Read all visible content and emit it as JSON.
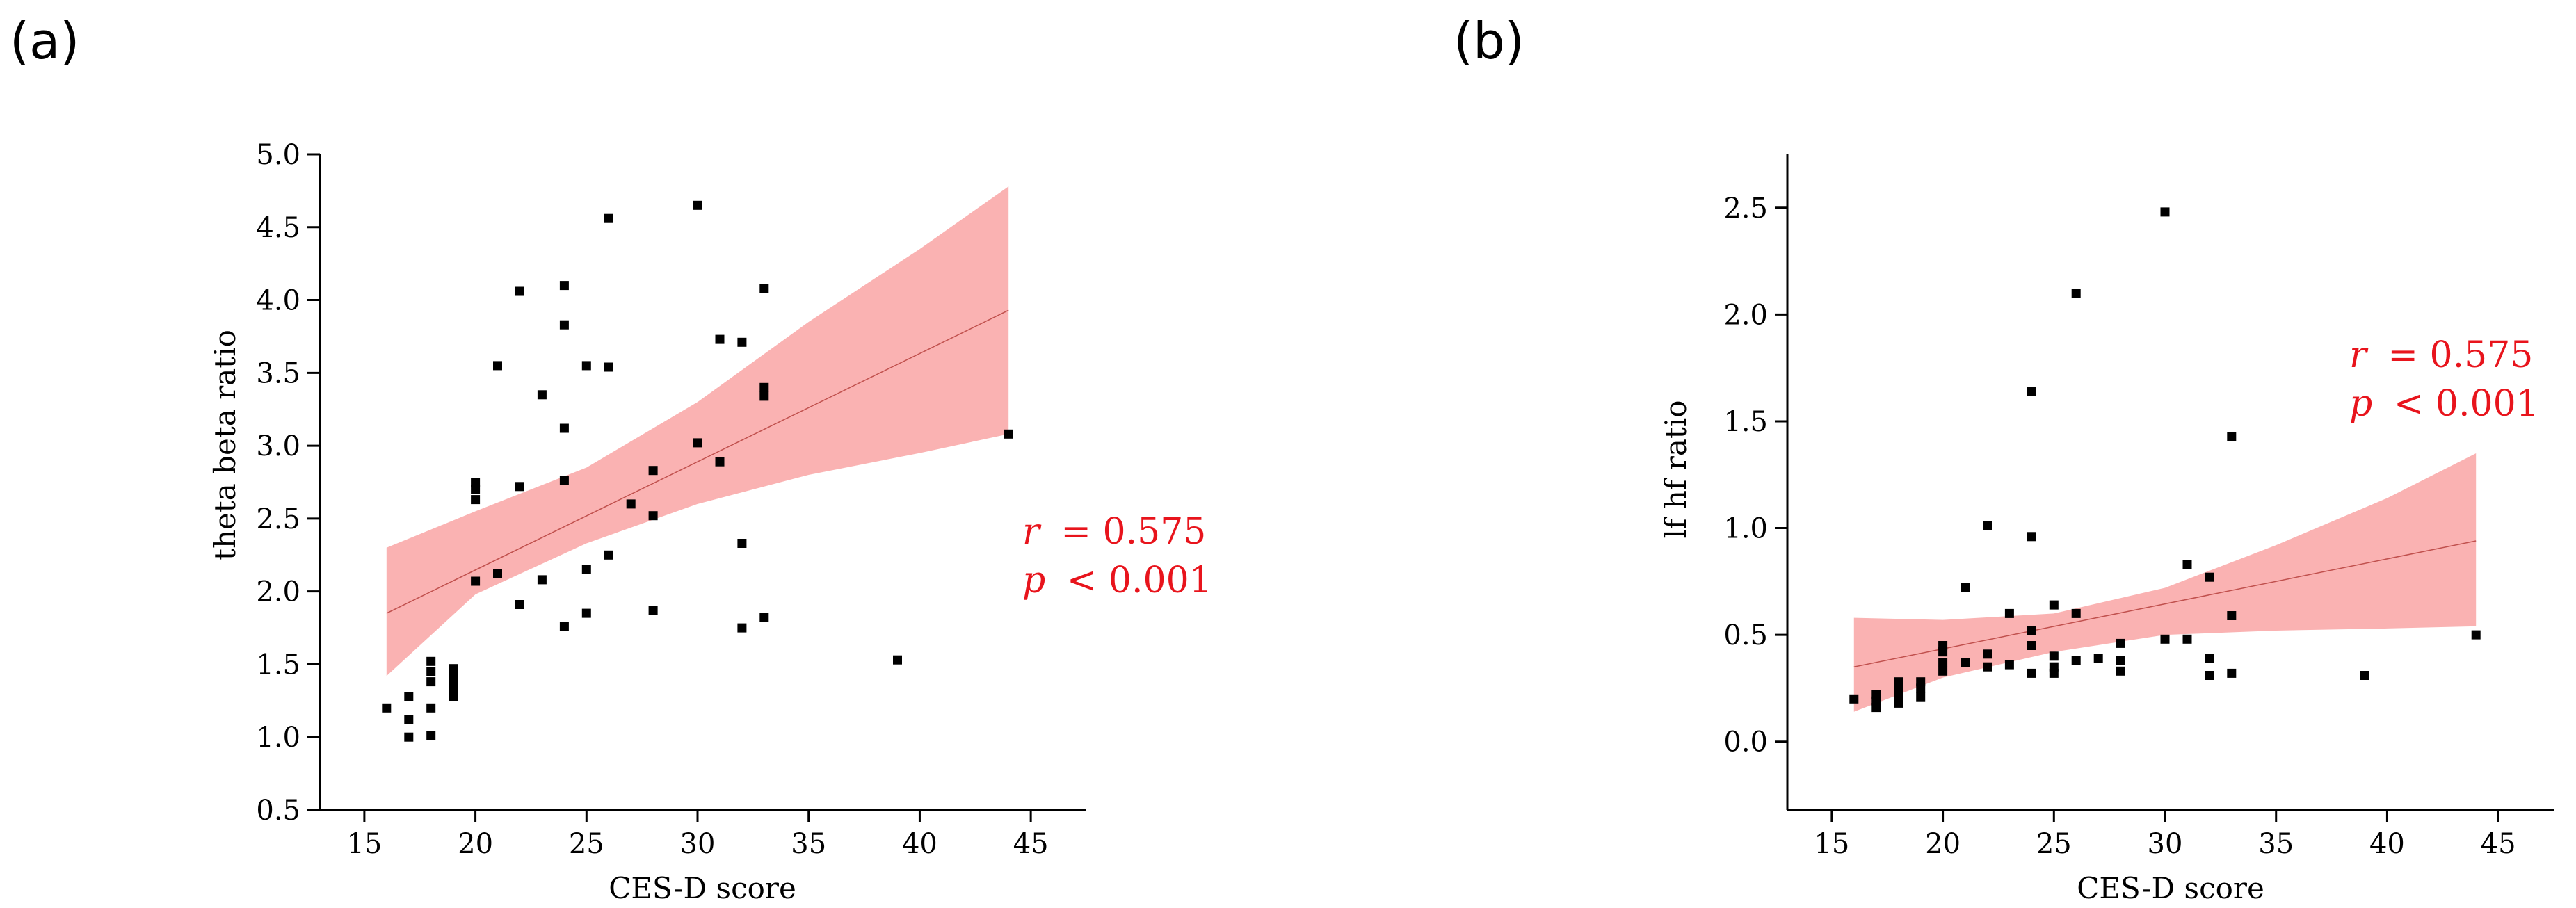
{
  "chart_data": [
    {
      "panel": "(a)",
      "type": "scatter",
      "xlabel": "CES-D score",
      "ylabel": "theta beta ratio",
      "xlim": [
        13,
        47.5
      ],
      "ylim": [
        0.5,
        5.0
      ],
      "xticks": [
        15,
        20,
        25,
        30,
        35,
        40,
        45
      ],
      "yticks": [
        "0.5",
        "1.0",
        "1.5",
        "2.0",
        "2.5",
        "3.0",
        "3.5",
        "4.0",
        "4.5",
        "5.0"
      ],
      "annotation": {
        "r_symbol": "r",
        "r_value": "= 0.575",
        "p_symbol": "p",
        "p_value": "< 0.001"
      },
      "fit_line": {
        "x": [
          16,
          44
        ],
        "y": [
          1.85,
          3.93
        ]
      },
      "confidence_band": {
        "x": [
          16,
          20,
          25,
          30,
          35,
          40,
          44
        ],
        "lower": [
          1.42,
          1.98,
          2.33,
          2.6,
          2.8,
          2.95,
          3.08
        ],
        "upper": [
          2.3,
          2.55,
          2.85,
          3.3,
          3.85,
          4.35,
          4.78
        ]
      },
      "points": [
        [
          16,
          1.2
        ],
        [
          17,
          1.28
        ],
        [
          17,
          1.12
        ],
        [
          17,
          1.0
        ],
        [
          18,
          1.52
        ],
        [
          18,
          1.45
        ],
        [
          18,
          1.38
        ],
        [
          18,
          1.2
        ],
        [
          18,
          1.01
        ],
        [
          19,
          1.47
        ],
        [
          19,
          1.42
        ],
        [
          19,
          1.37
        ],
        [
          19,
          1.33
        ],
        [
          19,
          1.28
        ],
        [
          20,
          2.75
        ],
        [
          20,
          2.7
        ],
        [
          20,
          2.63
        ],
        [
          20,
          2.07
        ],
        [
          21,
          3.55
        ],
        [
          21,
          2.12
        ],
        [
          22,
          4.06
        ],
        [
          22,
          2.72
        ],
        [
          22,
          1.91
        ],
        [
          23,
          3.35
        ],
        [
          23,
          2.08
        ],
        [
          24,
          4.1
        ],
        [
          24,
          3.83
        ],
        [
          24,
          3.12
        ],
        [
          24,
          2.76
        ],
        [
          24,
          1.76
        ],
        [
          25,
          3.55
        ],
        [
          25,
          2.15
        ],
        [
          25,
          1.85
        ],
        [
          26,
          4.56
        ],
        [
          26,
          3.54
        ],
        [
          26,
          2.25
        ],
        [
          27,
          2.6
        ],
        [
          28,
          2.83
        ],
        [
          28,
          2.52
        ],
        [
          28,
          1.87
        ],
        [
          30,
          4.65
        ],
        [
          30,
          3.02
        ],
        [
          31,
          3.73
        ],
        [
          31,
          2.89
        ],
        [
          32,
          3.71
        ],
        [
          32,
          2.33
        ],
        [
          32,
          1.75
        ],
        [
          33,
          4.08
        ],
        [
          33,
          3.4
        ],
        [
          33,
          3.34
        ],
        [
          33,
          1.82
        ],
        [
          39,
          1.53
        ],
        [
          44,
          3.08
        ]
      ]
    },
    {
      "panel": "(b)",
      "type": "scatter",
      "xlabel": "CES-D score",
      "ylabel": "lf hf ratio",
      "xlim": [
        13,
        47.5
      ],
      "ylim": [
        -0.32,
        2.75
      ],
      "xticks": [
        15,
        20,
        25,
        30,
        35,
        40,
        45
      ],
      "yticks": [
        "0.0",
        "0.5",
        "1.0",
        "1.5",
        "2.0",
        "2.5"
      ],
      "annotation": {
        "r_symbol": "r",
        "r_value": "= 0.575",
        "p_symbol": "p",
        "p_value": "< 0.001"
      },
      "fit_line": {
        "x": [
          16,
          44
        ],
        "y": [
          0.35,
          0.94
        ]
      },
      "confidence_band": {
        "x": [
          16,
          20,
          25,
          30,
          35,
          40,
          44
        ],
        "lower": [
          0.14,
          0.3,
          0.42,
          0.5,
          0.52,
          0.53,
          0.54
        ],
        "upper": [
          0.58,
          0.57,
          0.6,
          0.72,
          0.92,
          1.14,
          1.35
        ]
      },
      "points": [
        [
          16,
          0.2
        ],
        [
          17,
          0.22
        ],
        [
          17,
          0.19
        ],
        [
          17,
          0.16
        ],
        [
          18,
          0.28
        ],
        [
          18,
          0.24
        ],
        [
          18,
          0.21
        ],
        [
          18,
          0.18
        ],
        [
          19,
          0.28
        ],
        [
          19,
          0.25
        ],
        [
          19,
          0.21
        ],
        [
          20,
          0.45
        ],
        [
          20,
          0.42
        ],
        [
          20,
          0.37
        ],
        [
          20,
          0.33
        ],
        [
          21,
          0.72
        ],
        [
          21,
          0.37
        ],
        [
          22,
          1.01
        ],
        [
          22,
          0.41
        ],
        [
          22,
          0.35
        ],
        [
          23,
          0.6
        ],
        [
          23,
          0.36
        ],
        [
          24,
          1.64
        ],
        [
          24,
          0.96
        ],
        [
          24,
          0.52
        ],
        [
          24,
          0.45
        ],
        [
          24,
          0.32
        ],
        [
          25,
          0.64
        ],
        [
          25,
          0.4
        ],
        [
          25,
          0.35
        ],
        [
          25,
          0.32
        ],
        [
          26,
          2.1
        ],
        [
          26,
          0.6
        ],
        [
          26,
          0.38
        ],
        [
          27,
          0.39
        ],
        [
          28,
          0.46
        ],
        [
          28,
          0.38
        ],
        [
          28,
          0.33
        ],
        [
          30,
          2.48
        ],
        [
          30,
          0.48
        ],
        [
          31,
          0.83
        ],
        [
          31,
          0.48
        ],
        [
          32,
          0.77
        ],
        [
          32,
          0.39
        ],
        [
          32,
          0.31
        ],
        [
          33,
          1.43
        ],
        [
          33,
          0.59
        ],
        [
          33,
          0.32
        ],
        [
          39,
          0.31
        ],
        [
          44,
          0.5
        ]
      ]
    }
  ]
}
